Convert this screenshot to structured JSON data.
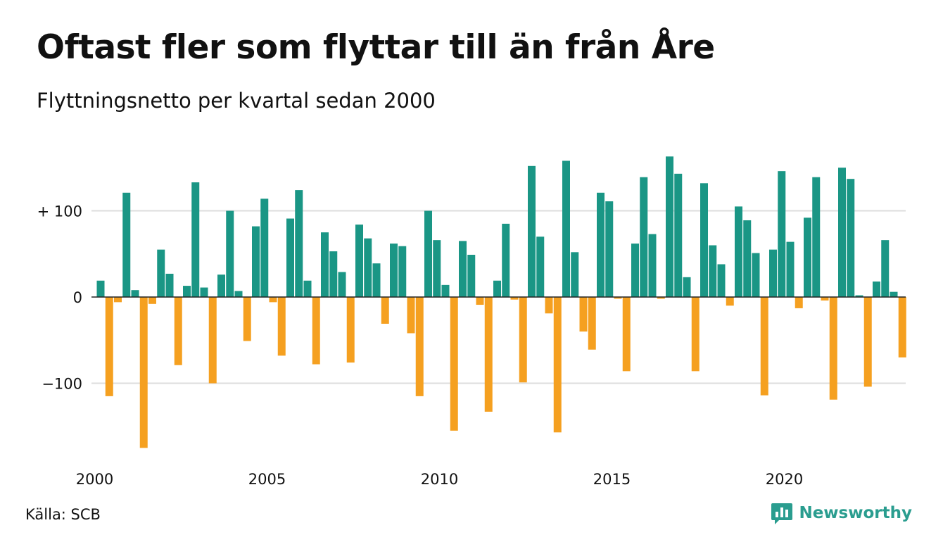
{
  "title": "Oftast fler som flyttar till än från Åre",
  "subtitle": "Flyttningsnetto per kvartal sedan 2000",
  "source": "Källa: SCB",
  "brand": {
    "name": "Newsworthy",
    "logo_icon": "bar-chart-speech-bubble-icon"
  },
  "colors": {
    "positive": "#1a9685",
    "negative": "#f5a020",
    "grid": "#dddddd",
    "zero": "#222222"
  },
  "chart_data": {
    "type": "bar",
    "title": "Oftast fler som flyttar till än från Åre",
    "subtitle": "Flyttningsnetto per kvartal sedan 2000",
    "xlabel": "",
    "ylabel": "",
    "ylim": [
      -180,
      170
    ],
    "grid": "horizontal",
    "y_ticks": [
      {
        "value": 100,
        "label": "+ 100"
      },
      {
        "value": 0,
        "label": "0"
      },
      {
        "value": -100,
        "label": "−100"
      }
    ],
    "x_ticks": [
      {
        "year": 2000,
        "label": "2000"
      },
      {
        "year": 2005,
        "label": "2005"
      },
      {
        "year": 2010,
        "label": "2010"
      },
      {
        "year": 2015,
        "label": "2015"
      },
      {
        "year": 2020,
        "label": "2020"
      }
    ],
    "start_year": 2000,
    "quarters_per_year": 4,
    "values": [
      19,
      -115,
      -6,
      121,
      8,
      -175,
      -8,
      55,
      27,
      -79,
      13,
      133,
      11,
      -100,
      26,
      100,
      7,
      -51,
      82,
      114,
      -6,
      -68,
      91,
      124,
      19,
      -78,
      75,
      53,
      29,
      -76,
      84,
      68,
      39,
      -31,
      62,
      59,
      -42,
      -115,
      100,
      66,
      14,
      -155,
      65,
      49,
      -9,
      -133,
      19,
      85,
      -3,
      -99,
      152,
      70,
      -19,
      -157,
      158,
      52,
      -40,
      -61,
      121,
      111,
      -2,
      -86,
      62,
      139,
      73,
      -2,
      163,
      143,
      23,
      -86,
      132,
      60,
      38,
      -10,
      105,
      89,
      51,
      -114,
      55,
      146,
      64,
      -13,
      92,
      139,
      -4,
      -119,
      150,
      137,
      2,
      -104,
      18,
      66,
      6,
      -70
    ]
  }
}
